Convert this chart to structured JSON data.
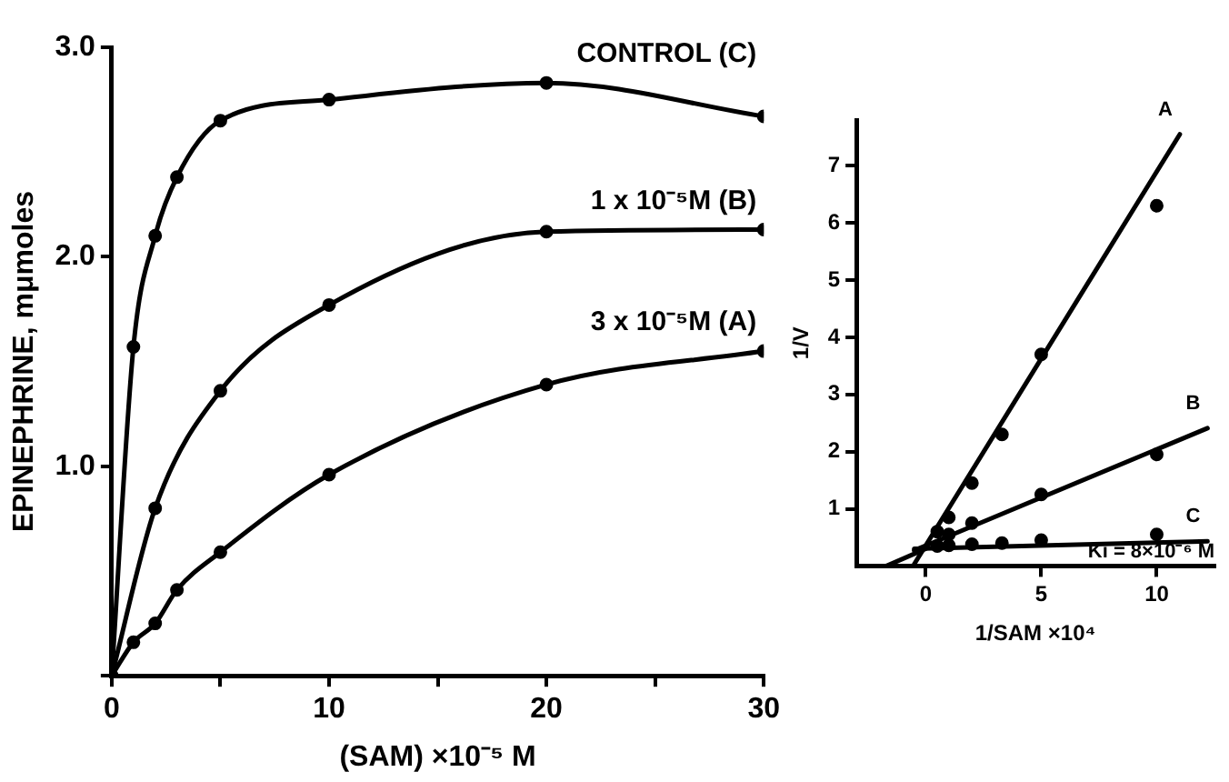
{
  "chart_data": [
    {
      "type": "line",
      "xlabel": "(SAM) ×10⁻⁵ M",
      "ylabel": "EPINEPHRINE, mμmoles",
      "xlim": [
        0,
        30
      ],
      "ylim": [
        0,
        3.0
      ],
      "xticks": [
        0,
        {
          "value": 5,
          "label": null
        },
        10,
        {
          "value": 15,
          "label": null
        },
        20,
        {
          "value": 25,
          "label": null
        },
        30
      ],
      "yticks": [
        {
          "value": 0,
          "label": null
        },
        {
          "value": 1,
          "label": "1.0"
        },
        {
          "value": 2,
          "label": "2.0"
        },
        {
          "value": 3,
          "label": "3.0"
        }
      ],
      "grid": false,
      "legend": false,
      "marker": "circle",
      "line_style": "solid",
      "series": [
        {
          "name": "CONTROL (C)",
          "color": "#000000",
          "x": [
            0,
            1,
            2,
            3,
            5,
            10,
            20,
            30
          ],
          "values": [
            0,
            1.57,
            2.1,
            2.38,
            2.65,
            2.75,
            2.83,
            2.67
          ]
        },
        {
          "name": "1 x 10⁻⁵M (B)",
          "color": "#000000",
          "x": [
            0,
            2,
            5,
            10,
            20,
            30
          ],
          "values": [
            0,
            0.8,
            1.36,
            1.77,
            2.12,
            2.13
          ]
        },
        {
          "name": "3 x 10⁻⁵M (A)",
          "color": "#000000",
          "x": [
            0,
            1,
            2,
            3,
            5,
            10,
            20,
            30
          ],
          "values": [
            0,
            0.16,
            0.25,
            0.41,
            0.59,
            0.96,
            1.39,
            1.55
          ]
        }
      ]
    },
    {
      "type": "line",
      "xlabel": "1/SAM ×10⁴",
      "ylabel": "1/V",
      "xlim": [
        -3,
        12.5
      ],
      "ylim": [
        0,
        7.8
      ],
      "xticks": [
        0,
        5,
        10
      ],
      "yticks": [
        1,
        2,
        3,
        4,
        5,
        6,
        7
      ],
      "grid": false,
      "legend": false,
      "line_style": "solid",
      "annotations": [
        "Ki = 8×10⁻⁶ M"
      ],
      "series": [
        {
          "name": "A",
          "marker": "none",
          "color": "#000000",
          "x": [
            -0.5,
            11
          ],
          "values": [
            0.03,
            7.55
          ]
        },
        {
          "name": "B",
          "marker": "none",
          "color": "#000000",
          "x": [
            -0.5,
            12.2
          ],
          "values": [
            0.27,
            2.41
          ]
        },
        {
          "name": "C",
          "marker": "none",
          "color": "#000000",
          "x": [
            -0.5,
            12.2
          ],
          "values": [
            0.3,
            0.43
          ]
        },
        {
          "marker": "none",
          "color": "#000000",
          "x": [
            -1.7,
            0
          ],
          "values": [
            0,
            0.3
          ]
        },
        {
          "type": "scatter",
          "marker": "circle",
          "color": "#000000",
          "x": [
            10,
            5,
            3.3,
            2,
            1,
            0.5
          ],
          "values": [
            6.3,
            3.7,
            2.3,
            1.45,
            0.85,
            0.6
          ]
        },
        {
          "type": "scatter",
          "marker": "circle",
          "color": "#000000",
          "x": [
            10,
            5,
            2,
            1
          ],
          "values": [
            1.95,
            1.25,
            0.75,
            0.55
          ]
        },
        {
          "type": "scatter",
          "marker": "circle",
          "color": "#000000",
          "x": [
            10,
            5,
            3.3,
            2,
            1,
            0.5
          ],
          "values": [
            0.55,
            0.45,
            0.4,
            0.38,
            0.36,
            0.35
          ]
        }
      ]
    }
  ]
}
